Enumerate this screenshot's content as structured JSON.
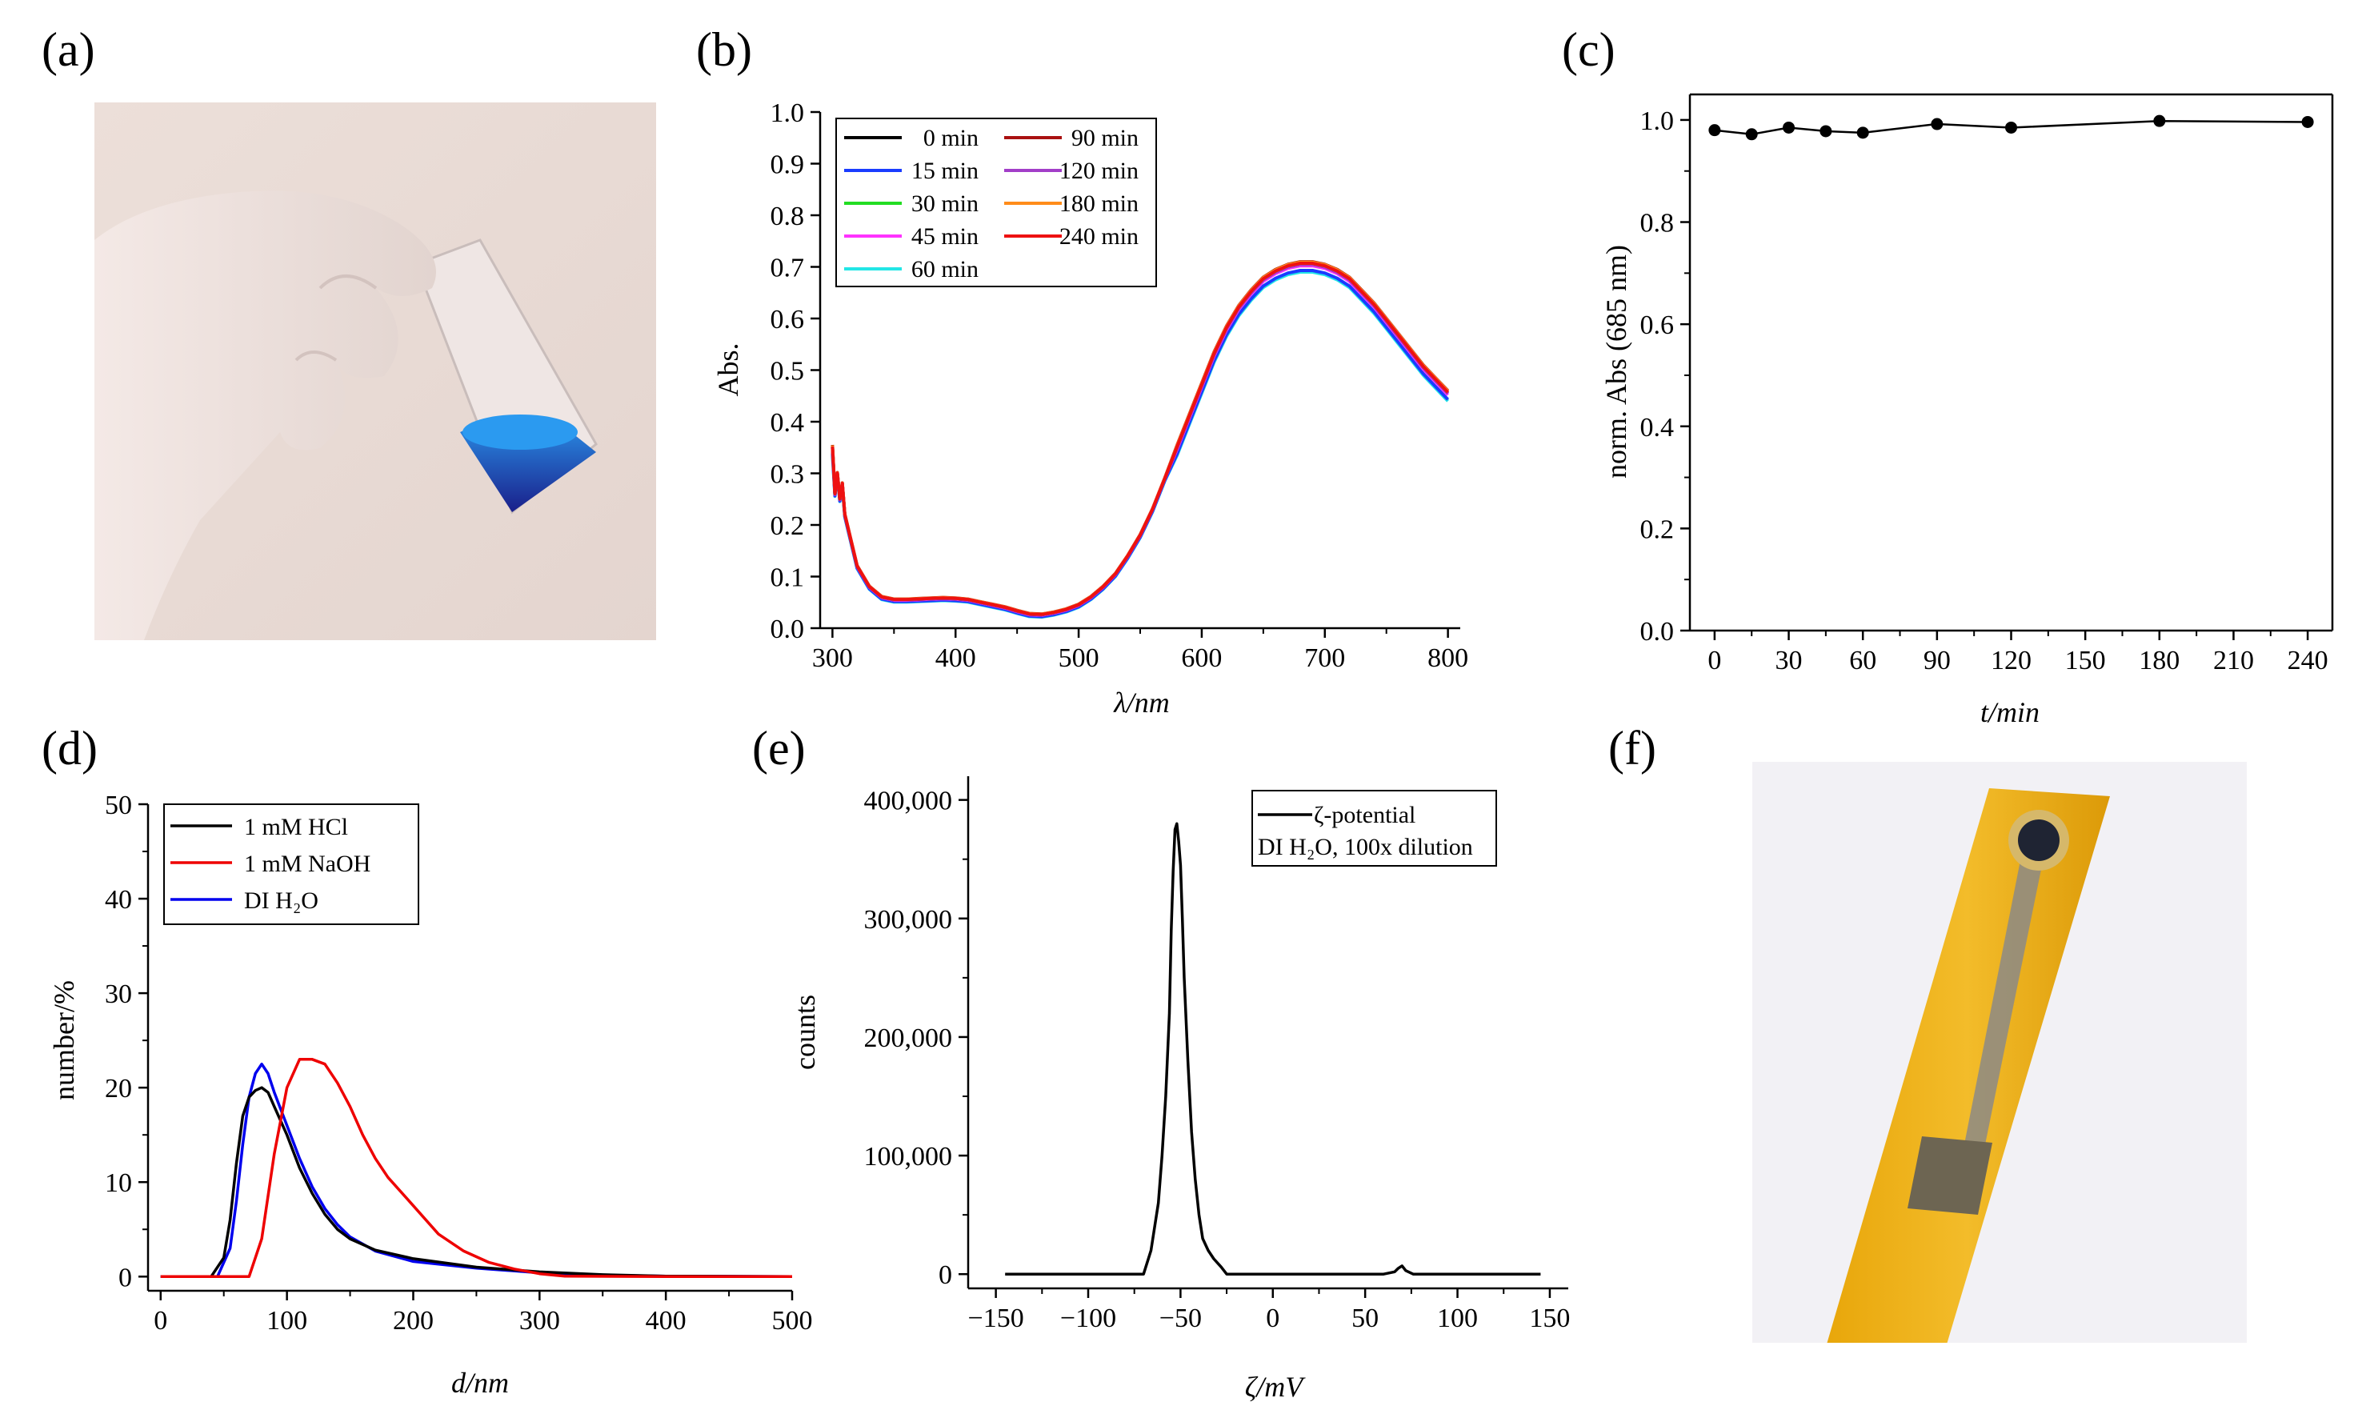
{
  "panel_labels": [
    "(a)",
    "(b)",
    "(c)",
    "(d)",
    "(e)",
    "(f)"
  ],
  "photos": {
    "a": "hand-holding-vial-blue-dispersion",
    "f": "yellow-strip-sensor-with-dark-dot"
  },
  "colors": {
    "black": "#000000",
    "blue": "#1a3cff",
    "green": "#22dd22",
    "magenta": "#ff33ff",
    "cyan": "#22e6e6",
    "darkred": "#aa1111",
    "purple": "#a23ec8",
    "orange": "#ff8c1a",
    "red": "#ee1111",
    "nm_blue": "#0000ee",
    "nm_red": "#ee0000"
  },
  "chart_data": [
    {
      "id": "b",
      "type": "line",
      "xlabel": "λ/nm",
      "ylabel": "Abs.",
      "xlim": [
        290,
        810
      ],
      "ylim": [
        0,
        1.0
      ],
      "xticks": [
        300,
        400,
        500,
        600,
        700,
        800
      ],
      "yticks": [
        "0.0",
        "0.1",
        "0.2",
        "0.3",
        "0.4",
        "0.5",
        "0.6",
        "0.7",
        "0.8",
        "0.9",
        "1.0"
      ],
      "legend": [
        {
          "name": "0 min",
          "color": "black"
        },
        {
          "name": "15 min",
          "color": "blue"
        },
        {
          "name": "30 min",
          "color": "green"
        },
        {
          "name": "45 min",
          "color": "magenta"
        },
        {
          "name": "60 min",
          "color": "cyan"
        },
        {
          "name": "90 min",
          "color": "darkred"
        },
        {
          "name": "120 min",
          "color": "purple"
        },
        {
          "name": "180 min",
          "color": "orange"
        },
        {
          "name": "240 min",
          "color": "red"
        }
      ],
      "x": [
        300,
        302,
        304,
        306,
        308,
        310,
        315,
        320,
        330,
        340,
        350,
        360,
        370,
        380,
        390,
        400,
        410,
        420,
        430,
        440,
        450,
        460,
        470,
        480,
        490,
        500,
        510,
        520,
        530,
        540,
        550,
        560,
        570,
        580,
        590,
        600,
        610,
        620,
        630,
        640,
        650,
        660,
        670,
        680,
        690,
        700,
        710,
        720,
        730,
        740,
        750,
        760,
        770,
        780,
        790,
        800
      ],
      "base": [
        0.35,
        0.26,
        0.3,
        0.25,
        0.28,
        0.22,
        0.17,
        0.12,
        0.08,
        0.06,
        0.055,
        0.055,
        0.056,
        0.057,
        0.058,
        0.057,
        0.055,
        0.05,
        0.045,
        0.04,
        0.033,
        0.027,
        0.026,
        0.03,
        0.036,
        0.045,
        0.06,
        0.08,
        0.105,
        0.14,
        0.18,
        0.23,
        0.29,
        0.35,
        0.41,
        0.47,
        0.53,
        0.58,
        0.62,
        0.65,
        0.675,
        0.69,
        0.7,
        0.705,
        0.705,
        0.7,
        0.69,
        0.675,
        0.65,
        0.625,
        0.595,
        0.565,
        0.535,
        0.505,
        0.48,
        0.455
      ],
      "offsets": [
        0.0,
        -0.012,
        0.0,
        -0.003,
        -0.015,
        0.005,
        0.0,
        0.004,
        0.002
      ]
    },
    {
      "id": "c",
      "type": "line",
      "xlabel": "t/min",
      "ylabel": "norm. Abs (685 nm)",
      "xlim": [
        -10,
        250
      ],
      "ylim": [
        0,
        1.05
      ],
      "xticks": [
        "0",
        "30",
        "60",
        "90",
        "120",
        "150",
        "180",
        "210",
        "240"
      ],
      "yticks": [
        "0.0",
        "0.2",
        "0.4",
        "0.6",
        "0.8",
        "1.0"
      ],
      "x": [
        0,
        15,
        30,
        45,
        60,
        90,
        120,
        180,
        240
      ],
      "y": [
        0.98,
        0.972,
        0.985,
        0.978,
        0.975,
        0.992,
        0.985,
        0.998,
        0.996
      ]
    },
    {
      "id": "d",
      "type": "line",
      "xlabel": "d/nm",
      "ylabel": "number/%",
      "xlim": [
        -10,
        500
      ],
      "ylim": [
        -1.5,
        50
      ],
      "xticks": [
        "0",
        "100",
        "200",
        "300",
        "400",
        "500"
      ],
      "yticks": [
        "0",
        "10",
        "20",
        "30",
        "40",
        "50"
      ],
      "series": [
        {
          "name": "1 mM HCl",
          "color": "black",
          "x": [
            0,
            40,
            50,
            55,
            60,
            65,
            70,
            75,
            80,
            85,
            90,
            100,
            110,
            120,
            130,
            140,
            150,
            170,
            200,
            250,
            300,
            350,
            400,
            500
          ],
          "y": [
            0,
            0,
            2,
            6,
            12,
            17,
            19,
            19.7,
            20,
            19.5,
            18,
            15,
            11.5,
            8.8,
            6.6,
            5,
            4,
            2.8,
            1.9,
            1,
            0.5,
            0.2,
            0.05,
            0
          ]
        },
        {
          "name": "1 mM NaOH",
          "color": "nm_red",
          "x": [
            0,
            70,
            80,
            90,
            100,
            110,
            120,
            130,
            140,
            150,
            160,
            170,
            180,
            200,
            220,
            240,
            260,
            280,
            300,
            320,
            400,
            500
          ],
          "y": [
            0,
            0,
            4,
            13,
            20,
            23,
            23,
            22.5,
            20.5,
            18,
            15,
            12.5,
            10.5,
            7.5,
            4.5,
            2.7,
            1.5,
            0.8,
            0.3,
            0.05,
            0,
            0
          ]
        },
        {
          "name": "DI H₂O",
          "color": "nm_blue",
          "x": [
            0,
            45,
            55,
            60,
            65,
            70,
            75,
            80,
            85,
            90,
            100,
            110,
            120,
            130,
            140,
            150,
            170,
            200,
            250,
            300,
            350,
            400,
            500
          ],
          "y": [
            0,
            0,
            3,
            8,
            14,
            19,
            21.5,
            22.5,
            21.5,
            19.5,
            16,
            12.5,
            9.5,
            7.2,
            5.5,
            4.2,
            2.7,
            1.6,
            0.9,
            0.4,
            0.15,
            0.05,
            0
          ]
        }
      ]
    },
    {
      "id": "e",
      "type": "line",
      "xlabel": "ζ/mV",
      "ylabel": "counts",
      "xlim": [
        -165,
        160
      ],
      "ylim": [
        -12000,
        420000
      ],
      "xticks": [
        "−150",
        "−100",
        "−50",
        "0",
        "50",
        "100",
        "150"
      ],
      "yticks": [
        "0",
        "100,000",
        "200,000",
        "300,000",
        "400,000"
      ],
      "legend": [
        "ζ-potential",
        "DI H₂O, 100x dilution"
      ],
      "x": [
        -145,
        -70,
        -66,
        -62,
        -60,
        -58,
        -56,
        -55,
        -54,
        -53,
        -52,
        -51,
        -50,
        -49,
        -48,
        -46,
        -44,
        -42,
        -40,
        -38,
        -35,
        -32,
        -28,
        -25,
        0,
        60,
        66,
        68,
        70,
        72,
        76,
        145
      ],
      "y": [
        0,
        0,
        20000,
        60000,
        100000,
        150000,
        220000,
        290000,
        340000,
        375000,
        380000,
        365000,
        345000,
        300000,
        250000,
        180000,
        120000,
        80000,
        50000,
        30000,
        20000,
        13000,
        6000,
        0,
        0,
        0,
        2000,
        5000,
        7000,
        3000,
        0,
        0
      ]
    }
  ]
}
